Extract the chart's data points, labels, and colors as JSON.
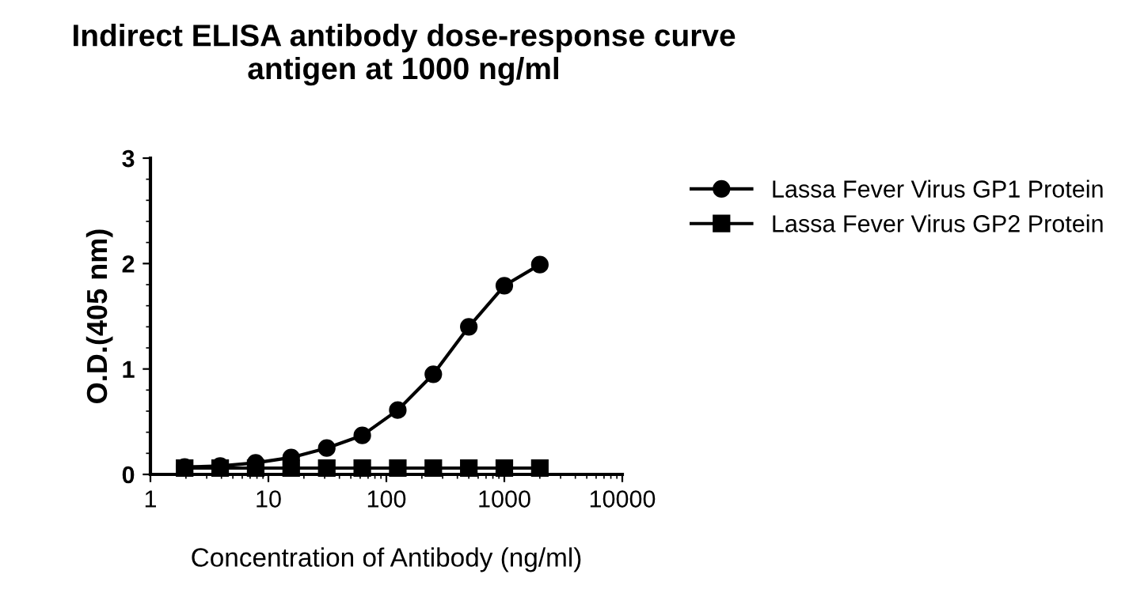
{
  "chart_data": {
    "type": "line",
    "title": "Indirect ELISA antibody dose-response curve\nantigen at 1000 ng/ml",
    "xlabel": "Concentration of Antibody (ng/ml)",
    "ylabel": "O.D.(405 nm)",
    "x": [
      1.95,
      3.9,
      7.8,
      15.6,
      31.25,
      62.5,
      125,
      250,
      500,
      1000,
      2000
    ],
    "series": [
      {
        "name": "Lassa Fever Virus GP1 Protein",
        "color": "#000000",
        "marker": "circle",
        "values": [
          0.07,
          0.08,
          0.11,
          0.16,
          0.25,
          0.37,
          0.61,
          0.95,
          1.4,
          1.79,
          1.99
        ]
      },
      {
        "name": "Lassa Fever Virus GP2 Protein",
        "color": "#000000",
        "marker": "square",
        "values": [
          0.06,
          0.06,
          0.06,
          0.06,
          0.06,
          0.06,
          0.06,
          0.06,
          0.06,
          0.06,
          0.06
        ]
      }
    ],
    "log": "x",
    "xlim": [
      1,
      10000
    ],
    "xticks": [
      1,
      10,
      100,
      1000,
      10000
    ],
    "ylim": [
      0,
      3
    ],
    "yticks": [
      0,
      1,
      2,
      3
    ],
    "grid": false,
    "legend": "top right",
    "line_style": "solid"
  }
}
